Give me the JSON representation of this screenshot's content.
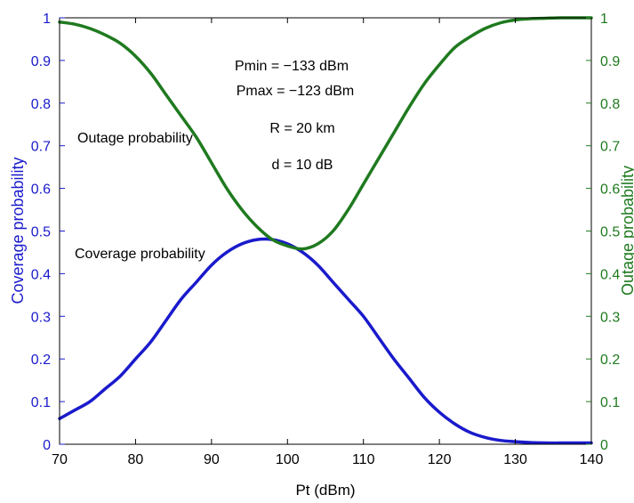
{
  "colors": {
    "left_axis": "#1a1acc",
    "right_axis": "#1f7a1f",
    "coverage_line": "#1a1acc",
    "outage_line": "#1f7a1f",
    "frame": "#000000",
    "background": "#ffffff"
  },
  "chart_data": {
    "type": "line",
    "title": "",
    "xlabel": "Pt (dBm)",
    "ylabel_left": "Coverage probability",
    "ylabel_right": "Outage probability",
    "xlim": [
      70,
      140
    ],
    "ylim_left": [
      0,
      1
    ],
    "ylim_right": [
      0,
      1
    ],
    "grid": false,
    "x_ticks": [
      "70",
      "80",
      "90",
      "100",
      "110",
      "120",
      "130",
      "140"
    ],
    "y_ticks_left": [
      "0",
      "0.1",
      "0.2",
      "0.3",
      "0.4",
      "0.5",
      "0.6",
      "0.7",
      "0.8",
      "0.9",
      "1"
    ],
    "y_ticks_right": [
      "0",
      "0.1",
      "0.2",
      "0.3",
      "0.4",
      "0.5",
      "0.6",
      "0.7",
      "0.8",
      "0.9",
      "1"
    ],
    "x": [
      70,
      72,
      74,
      76,
      78,
      80,
      82,
      84,
      86,
      88,
      90,
      92,
      94,
      96,
      98,
      100,
      102,
      104,
      106,
      108,
      110,
      112,
      114,
      116,
      118,
      120,
      122,
      124,
      126,
      128,
      130,
      132,
      134,
      136,
      138,
      140
    ],
    "series": [
      {
        "name": "Coverage probability",
        "axis": "left",
        "values": [
          0.06,
          0.08,
          0.1,
          0.13,
          0.16,
          0.2,
          0.24,
          0.29,
          0.34,
          0.38,
          0.42,
          0.45,
          0.47,
          0.48,
          0.48,
          0.47,
          0.45,
          0.42,
          0.38,
          0.34,
          0.3,
          0.25,
          0.2,
          0.155,
          0.11,
          0.075,
          0.048,
          0.028,
          0.016,
          0.009,
          0.006,
          0.004,
          0.003,
          0.003,
          0.003,
          0.003
        ]
      },
      {
        "name": "Outage probability",
        "axis": "right",
        "values": [
          0.99,
          0.985,
          0.975,
          0.96,
          0.94,
          0.91,
          0.87,
          0.82,
          0.77,
          0.72,
          0.66,
          0.6,
          0.55,
          0.51,
          0.48,
          0.465,
          0.458,
          0.47,
          0.5,
          0.55,
          0.61,
          0.67,
          0.73,
          0.79,
          0.845,
          0.89,
          0.93,
          0.955,
          0.975,
          0.988,
          0.995,
          0.998,
          0.999,
          1.0,
          1.0,
          1.0
        ]
      }
    ],
    "annotations": {
      "params": [
        "Pmin = −133 dBm",
        "Pmax = −123 dBm",
        "R = 20 km",
        "d = 10 dB"
      ],
      "outage_label": "Outage probability",
      "coverage_label": "Coverage probability"
    }
  }
}
